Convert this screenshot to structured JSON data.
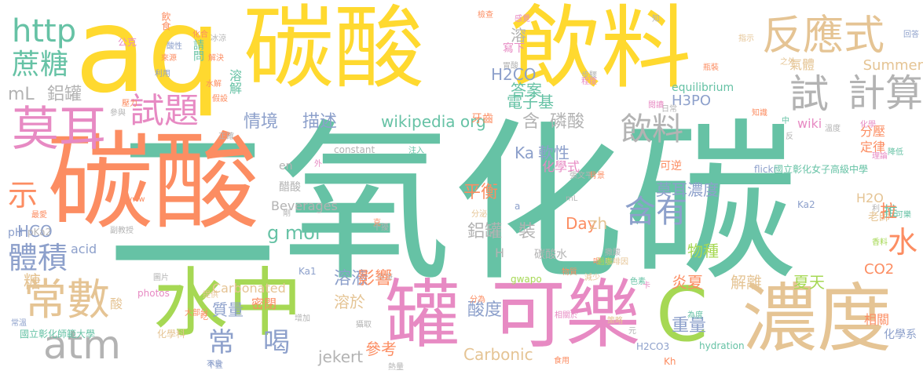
{
  "palette": {
    "teal": "#66c2a5",
    "orange": "#fc8d62",
    "blue": "#8da0cb",
    "pink": "#e78ac3",
    "green": "#a6d854",
    "yellow": "#ffd92f",
    "tan": "#e5c494",
    "gray": "#b3b3b3"
  },
  "words": [
    "二氧化碳",
    "碳酸",
    "aq",
    "碳酸",
    "飲料",
    "水中",
    "罐",
    "可樂",
    "C",
    "濃度",
    "常數",
    "atm",
    "莫耳",
    "反應式",
    "試",
    "計算",
    "試題",
    "http",
    "蔗糖",
    "示",
    "體積",
    "含有",
    "飲料",
    "水",
    "常",
    "喝",
    "mL",
    "鋁罐",
    "情境",
    "描述",
    "wikipedia org",
    "含",
    "磷酸",
    "g mol",
    "鋁罐",
    "裝",
    "H2CO",
    "答案",
    "電子基",
    "溶",
    "Ka",
    "軟性",
    "平衡",
    "酸度",
    "重量",
    "莫耳濃度",
    "溶液",
    "溶於",
    "參考",
    "Carbonic",
    "解離",
    "夏天",
    "炎夏",
    "物種",
    "CO2",
    "質量",
    "密閉",
    "酸",
    "H",
    "HCO",
    "Beverages",
    "Carbonated",
    "acid",
    "pH",
    "pKa2",
    "H2O",
    "H3PO",
    "分壓",
    "定律",
    "相關",
    "化學系",
    "牙齒",
    "jekert",
    "Day",
    "zh",
    "en",
    "醋酸",
    "Summer",
    "equilibrium",
    "flickr",
    "國立彰化女子高級中學",
    "國立彰化師範大學",
    "可逆",
    "碳酸水",
    "化學式",
    "photos",
    "wiki",
    "gwapo",
    "Ka2",
    "Ka1",
    "constant",
    "hydration",
    "H2CO3",
    "Kh",
    "飲食",
    "酸性",
    "公克",
    "化合",
    "冰涼",
    "解決",
    "來源",
    "利用",
    "水解",
    "壓力",
    "假設",
    "參與",
    "正確",
    "知",
    "溶解",
    "請問",
    "寫下",
    "胃酸",
    "感覺",
    "檢查",
    "步驟",
    "程度",
    "瓶裝",
    "知識",
    "日常",
    "溫度",
    "指示",
    "之外",
    "氣體",
    "健康",
    "分為",
    "大部分",
    "提供",
    "常溫",
    "不良",
    "不宜",
    "增加",
    "攝取",
    "食用",
    "熱量",
    "策略",
    "減少",
    "撒酸",
    "咖啡因",
    "干擾",
    "影響",
    "糖",
    "克",
    "a",
    "mL",
    "物質",
    "理論",
    "可樂",
    "老師",
    "利",
    "推",
    "香料",
    "拉",
    "降低",
    "中",
    "反",
    "化學",
    "張文平",
    "背景",
    "喝",
    "過多",
    "分泌",
    "外",
    "注入",
    "剛",
    "圖片",
    "閱讀",
    "www",
    "副教授",
    "最愛",
    "化學科",
    "吃",
    "相關於",
    "為度",
    "元",
    "色素",
    "卡",
    "回答",
    "涼涼",
    "保",
    "肌",
    "不",
    "良",
    "碳"
  ]
}
